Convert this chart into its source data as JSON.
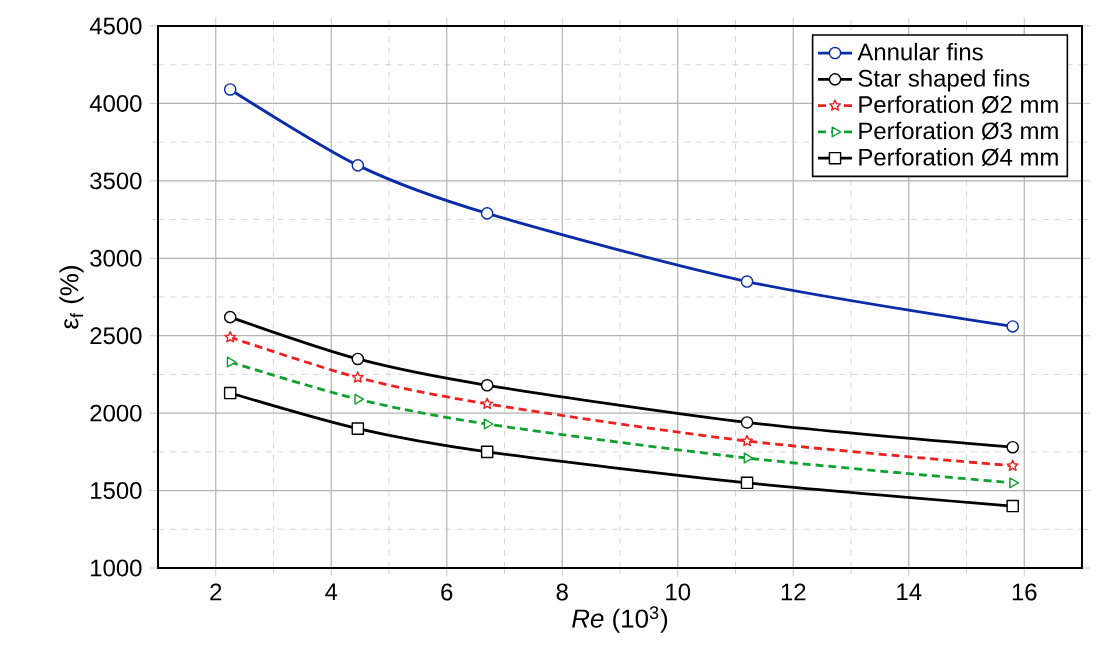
{
  "chart_data": {
    "type": "line",
    "xlabel": "*Re*  (10$^{3}$)",
    "ylabel": "ε$_{f}$ (%)",
    "xlim": [
      1,
      17
    ],
    "xticks": [
      2,
      4,
      6,
      8,
      10,
      12,
      14,
      16
    ],
    "ylim": [
      1000,
      4500
    ],
    "yticks": [
      1000,
      1500,
      2000,
      2500,
      3000,
      3500,
      4000,
      4500
    ],
    "x": [
      2.25,
      4.46,
      6.7,
      11.2,
      15.8
    ],
    "grid": true,
    "legend": "top right",
    "series": [
      {
        "name": "Annular fins",
        "color": "#0a2ca8",
        "marker": "circle",
        "line_style": "solid",
        "values": [
          4090,
          3600,
          3290,
          2850,
          2560
        ]
      },
      {
        "name": "Star shaped fins",
        "color": "#000000",
        "marker": "circle",
        "line_style": "solid",
        "values": [
          2620,
          2350,
          2180,
          1940,
          1780
        ]
      },
      {
        "name": "Perforation Ø2 mm",
        "color": "#ee2020",
        "marker": "star",
        "line_style": "dashed",
        "values": [
          2490,
          2230,
          2060,
          1820,
          1660
        ]
      },
      {
        "name": "Perforation Ø3 mm",
        "color": "#10a030",
        "marker": "triangle",
        "line_style": "dashed",
        "values": [
          2330,
          2090,
          1930,
          1710,
          1550
        ]
      },
      {
        "name": "Perforation Ø4 mm",
        "color": "#000000",
        "marker": "square",
        "line_style": "solid",
        "values": [
          2130,
          1900,
          1750,
          1550,
          1400
        ]
      }
    ]
  }
}
